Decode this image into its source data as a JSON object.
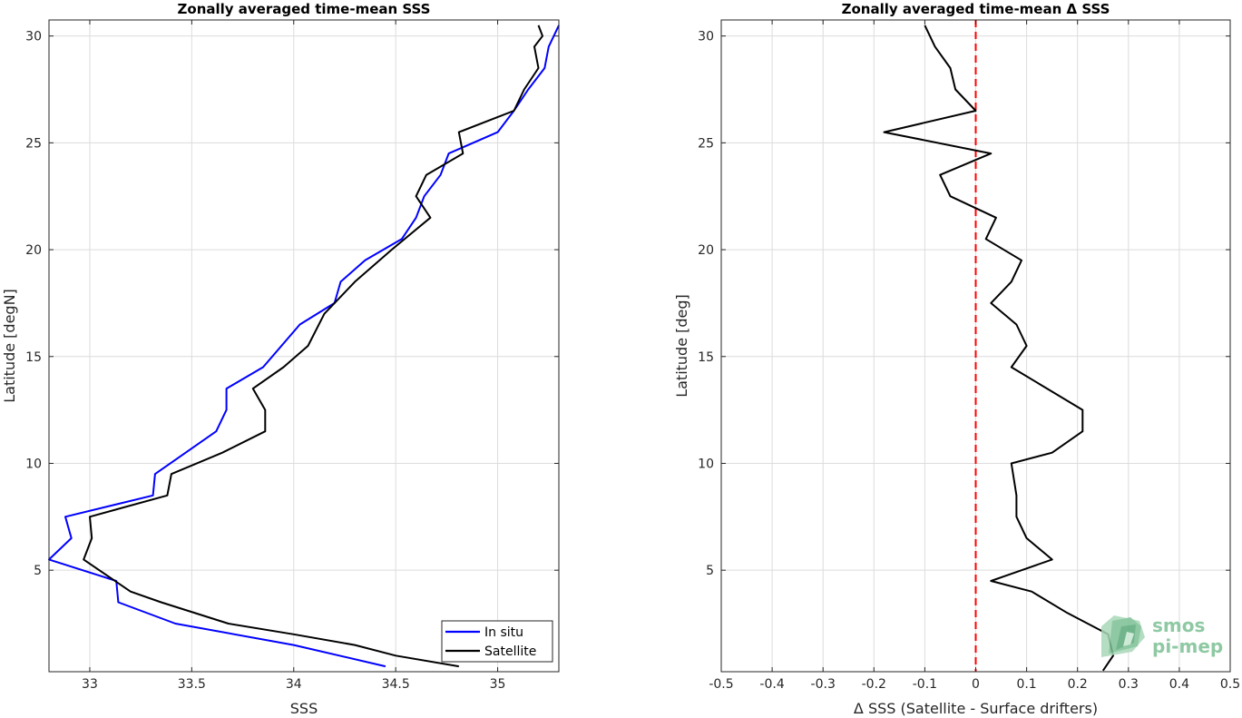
{
  "chart_data": [
    {
      "type": "line",
      "title": "Zonally averaged time-mean SSS",
      "xlabel": "SSS",
      "ylabel": "Latitude [degN]",
      "xlim": [
        32.8,
        35.3
      ],
      "ylim": [
        0.25,
        30.75
      ],
      "xticks": [
        "33",
        "33.5",
        "34",
        "34.5",
        "35"
      ],
      "xtick_values": [
        33,
        33.5,
        34,
        34.5,
        35
      ],
      "yticks": [
        "5",
        "10",
        "15",
        "20",
        "25",
        "30"
      ],
      "ytick_values": [
        5,
        10,
        15,
        20,
        25,
        30
      ],
      "grid": true,
      "legend": "bottom-right",
      "series": [
        {
          "name": "In situ",
          "color": "#0000ff",
          "points": [
            [
              34.45,
              0.5
            ],
            [
              34.0,
              1.5
            ],
            [
              33.42,
              2.5
            ],
            [
              33.14,
              3.5
            ],
            [
              33.13,
              4.5
            ],
            [
              32.8,
              5.5
            ],
            [
              32.91,
              6.5
            ],
            [
              32.88,
              7.5
            ],
            [
              33.31,
              8.5
            ],
            [
              33.32,
              9.5
            ],
            [
              33.62,
              11.5
            ],
            [
              33.67,
              12.5
            ],
            [
              33.67,
              13.5
            ],
            [
              33.85,
              14.5
            ],
            [
              34.03,
              16.5
            ],
            [
              34.2,
              17.5
            ],
            [
              34.23,
              18.5
            ],
            [
              34.35,
              19.5
            ],
            [
              34.53,
              20.5
            ],
            [
              34.6,
              21.5
            ],
            [
              34.64,
              22.5
            ],
            [
              34.72,
              23.5
            ],
            [
              34.76,
              24.5
            ],
            [
              35.0,
              25.5
            ],
            [
              35.08,
              26.5
            ],
            [
              35.15,
              27.5
            ],
            [
              35.23,
              28.5
            ],
            [
              35.25,
              29.5
            ],
            [
              35.3,
              30.5
            ]
          ]
        },
        {
          "name": "Satellite",
          "color": "#000000",
          "points": [
            [
              34.81,
              0.5
            ],
            [
              34.5,
              1.0
            ],
            [
              34.3,
              1.5
            ],
            [
              34.0,
              2.0
            ],
            [
              33.68,
              2.5
            ],
            [
              33.35,
              3.5
            ],
            [
              33.2,
              4.0
            ],
            [
              32.97,
              5.5
            ],
            [
              33.01,
              6.5
            ],
            [
              33.0,
              7.5
            ],
            [
              33.38,
              8.5
            ],
            [
              33.4,
              9.5
            ],
            [
              33.65,
              10.5
            ],
            [
              33.86,
              11.5
            ],
            [
              33.86,
              12.5
            ],
            [
              33.8,
              13.5
            ],
            [
              33.95,
              14.5
            ],
            [
              34.07,
              15.5
            ],
            [
              34.15,
              17.0
            ],
            [
              34.3,
              18.5
            ],
            [
              34.48,
              20.0
            ],
            [
              34.67,
              21.5
            ],
            [
              34.6,
              22.5
            ],
            [
              34.65,
              23.5
            ],
            [
              34.83,
              24.5
            ],
            [
              34.81,
              25.5
            ],
            [
              35.08,
              26.5
            ],
            [
              35.13,
              27.5
            ],
            [
              35.2,
              28.5
            ],
            [
              35.18,
              29.5
            ],
            [
              35.22,
              30.0
            ],
            [
              35.2,
              30.5
            ]
          ]
        }
      ]
    },
    {
      "type": "line",
      "title": "Zonally averaged time-mean Δ SSS",
      "xlabel": "Δ SSS (Satellite - Surface drifters)",
      "ylabel": "Latitude [deg]",
      "xlim": [
        -0.5,
        0.5
      ],
      "ylim": [
        0.25,
        30.75
      ],
      "xticks": [
        "-0.5",
        "-0.4",
        "-0.3",
        "-0.2",
        "-0.1",
        "0",
        "0.1",
        "0.2",
        "0.3",
        "0.4",
        "0.5"
      ],
      "xtick_values": [
        -0.5,
        -0.4,
        -0.3,
        -0.2,
        -0.1,
        0,
        0.1,
        0.2,
        0.3,
        0.4,
        0.5
      ],
      "yticks": [
        "5",
        "10",
        "15",
        "20",
        "25",
        "30"
      ],
      "ytick_values": [
        5,
        10,
        15,
        20,
        25,
        30
      ],
      "grid": true,
      "reference_line": {
        "x": 0,
        "color": "#ff0000",
        "style": "dashed"
      },
      "series": [
        {
          "color": "#000000",
          "points": [
            [
              0.25,
              0.3
            ],
            [
              0.27,
              1.0
            ],
            [
              0.26,
              2.0
            ],
            [
              0.18,
              3.0
            ],
            [
              0.11,
              4.0
            ],
            [
              0.03,
              4.5
            ],
            [
              0.15,
              5.5
            ],
            [
              0.1,
              6.5
            ],
            [
              0.08,
              7.5
            ],
            [
              0.08,
              8.5
            ],
            [
              0.07,
              10.0
            ],
            [
              0.15,
              10.5
            ],
            [
              0.21,
              11.5
            ],
            [
              0.21,
              12.5
            ],
            [
              0.07,
              14.5
            ],
            [
              0.1,
              15.5
            ],
            [
              0.08,
              16.5
            ],
            [
              0.03,
              17.5
            ],
            [
              0.07,
              18.5
            ],
            [
              0.09,
              19.5
            ],
            [
              0.02,
              20.5
            ],
            [
              0.04,
              21.5
            ],
            [
              -0.05,
              22.5
            ],
            [
              -0.07,
              23.5
            ],
            [
              0.03,
              24.5
            ],
            [
              -0.18,
              25.5
            ],
            [
              0.0,
              26.5
            ],
            [
              -0.04,
              27.5
            ],
            [
              -0.05,
              28.5
            ],
            [
              -0.08,
              29.5
            ],
            [
              -0.1,
              30.5
            ]
          ]
        }
      ]
    }
  ],
  "legend": {
    "items": [
      {
        "label": "In situ",
        "color": "#0000ff"
      },
      {
        "label": "Satellite",
        "color": "#000000"
      }
    ]
  },
  "logo": {
    "line1": "smos",
    "line2": "pi-mep"
  }
}
